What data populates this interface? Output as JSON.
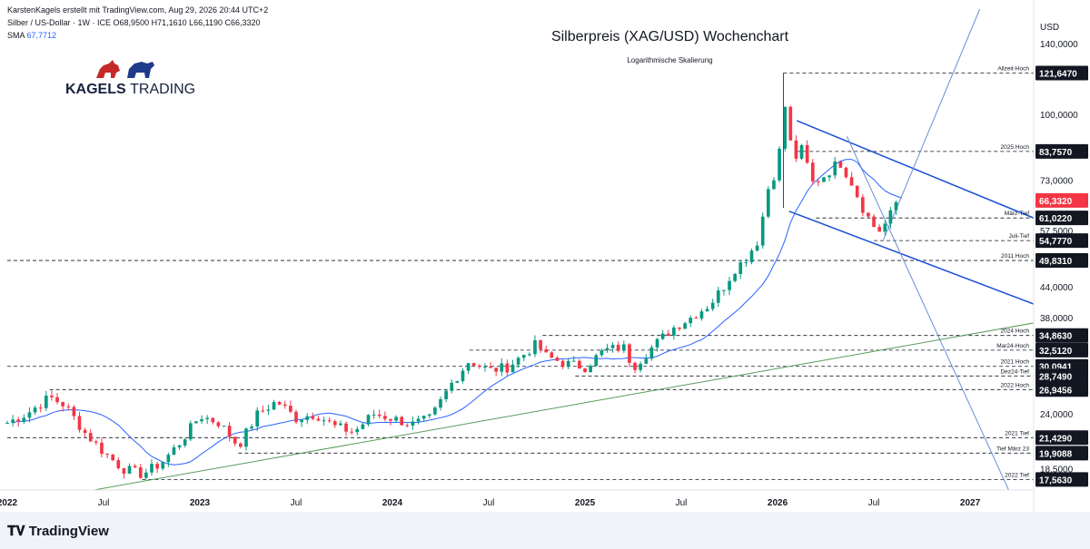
{
  "header": {
    "line1": "KarstenKagels erstellt mit TradingView.com, Aug 29, 2026 20:44 UTC+2",
    "symbol": "Silber / US-Dollar · 1W · ICE",
    "ohlc": "O68,9500 H71,1610 L66,1190 C66,3320",
    "sma_label": "SMA",
    "sma_value": "67,7712"
  },
  "logo": {
    "brand_bold": "KAGELS",
    "brand_light": "TRADING"
  },
  "footer": {
    "brand": "TradingView"
  },
  "colors": {
    "up": "#089981",
    "down": "#f23645",
    "sma": "#2962ff",
    "channel": "#1c4fd6",
    "support": "#5b9b5b",
    "current": "#f23645"
  },
  "chart_data": {
    "type": "candlestick",
    "title": "Silberpreis (XAG/USD) Wochenchart",
    "subtitle": "Logarithmische Skalierung",
    "currency": "USD",
    "scale": "log",
    "x_start": 2022.0,
    "x_end": 2027.33,
    "ylim": [
      16.7,
      165
    ],
    "x_ticks": [
      {
        "label": "2022",
        "x": 2022.0
      },
      {
        "label": "Jul",
        "x": 2022.5
      },
      {
        "label": "2023",
        "x": 2023.0
      },
      {
        "label": "Jul",
        "x": 2023.5
      },
      {
        "label": "2024",
        "x": 2024.0
      },
      {
        "label": "Jul",
        "x": 2024.5
      },
      {
        "label": "2025",
        "x": 2025.0
      },
      {
        "label": "Jul",
        "x": 2025.5
      },
      {
        "label": "2026",
        "x": 2026.0
      },
      {
        "label": "Jul",
        "x": 2026.5
      },
      {
        "label": "2027",
        "x": 2027.0
      }
    ],
    "y_ticks": [
      "140,0000",
      "100,0000",
      "73,0000",
      "57,5000",
      "44,0000",
      "38,0000",
      "24,0000",
      "18,5000"
    ],
    "y_tick_values": [
      140,
      100,
      73,
      57.5,
      44,
      38,
      24,
      18.5
    ],
    "levels": [
      {
        "value": 121.647,
        "tag": "121,6470",
        "label": "Allzeit-Hoch",
        "from": 2026.03
      },
      {
        "value": 83.757,
        "tag": "83,7570",
        "label": "2025 Hoch",
        "from": 2026.1
      },
      {
        "value": 61.022,
        "tag": "61,0220",
        "label": "März-Tief",
        "from": 2026.2
      },
      {
        "value": 54.777,
        "tag": "54,7770",
        "label": "Juli-Tief",
        "from": 2026.5
      },
      {
        "value": 49.831,
        "tag": "49,8310",
        "label": "2011 Hoch",
        "from": 2022.0
      },
      {
        "value": 34.863,
        "tag": "34,8630",
        "label": "2024 Hoch",
        "from": 2024.78
      },
      {
        "value": 32.512,
        "tag": "32,5120",
        "label": "Mar24-Hoch",
        "from": 2024.4
      },
      {
        "value": 30.0941,
        "tag": "30,0941",
        "label": "2021 Hoch",
        "from": 2022.0
      },
      {
        "value": 28.749,
        "tag": "28,7490",
        "label": "Dez24-Tief",
        "from": 2024.95
      },
      {
        "value": 26.9456,
        "tag": "26,9456",
        "label": "2022 Hoch",
        "from": 2022.22
      },
      {
        "value": 21.429,
        "tag": "21,4290",
        "label": "2021 Tief",
        "from": 2022.0
      },
      {
        "value": 19.9088,
        "tag": "19,9088",
        "label": "Tief März 23",
        "from": 2023.2
      },
      {
        "value": 17.563,
        "tag": "17,5630",
        "label": "2022 Tief",
        "from": 2022.7
      }
    ],
    "current_price": {
      "value": 66.332,
      "tag": "66,3320"
    },
    "extra_tag": {
      "value": 83.757,
      "tag": "83,7570"
    },
    "anchors": [
      [
        2022.0,
        23.0
      ],
      [
        2022.1,
        24.0
      ],
      [
        2022.22,
        26.0
      ],
      [
        2022.3,
        25.0
      ],
      [
        2022.4,
        22.0
      ],
      [
        2022.5,
        20.0
      ],
      [
        2022.6,
        18.5
      ],
      [
        2022.7,
        18.0
      ],
      [
        2022.8,
        19.0
      ],
      [
        2022.9,
        21.0
      ],
      [
        2023.0,
        23.8
      ],
      [
        2023.1,
        23.0
      ],
      [
        2023.2,
        20.6
      ],
      [
        2023.3,
        24.0
      ],
      [
        2023.4,
        25.5
      ],
      [
        2023.5,
        23.5
      ],
      [
        2023.6,
        24.0
      ],
      [
        2023.7,
        22.6
      ],
      [
        2023.8,
        22.0
      ],
      [
        2023.9,
        24.0
      ],
      [
        2024.0,
        23.5
      ],
      [
        2024.1,
        22.8
      ],
      [
        2024.2,
        23.5
      ],
      [
        2024.3,
        27.5
      ],
      [
        2024.4,
        31.0
      ],
      [
        2024.5,
        29.5
      ],
      [
        2024.6,
        30.0
      ],
      [
        2024.75,
        33.5
      ],
      [
        2024.8,
        31.5
      ],
      [
        2024.9,
        30.5
      ],
      [
        2025.0,
        30.0
      ],
      [
        2025.1,
        32.5
      ],
      [
        2025.2,
        33.0
      ],
      [
        2025.25,
        30.0
      ],
      [
        2025.35,
        33.0
      ],
      [
        2025.45,
        36.0
      ],
      [
        2025.55,
        38.0
      ],
      [
        2025.65,
        40.5
      ],
      [
        2025.72,
        44.0
      ],
      [
        2025.78,
        48.0
      ],
      [
        2025.83,
        50.0
      ],
      [
        2025.9,
        55.0
      ],
      [
        2025.95,
        70.0
      ],
      [
        2026.0,
        78.0
      ],
      [
        2026.04,
        105.0
      ],
      [
        2026.08,
        80.0
      ],
      [
        2026.13,
        85.0
      ],
      [
        2026.18,
        72.0
      ],
      [
        2026.25,
        75.0
      ],
      [
        2026.32,
        80.0
      ],
      [
        2026.38,
        73.0
      ],
      [
        2026.45,
        63.0
      ],
      [
        2026.52,
        57.0
      ],
      [
        2026.57,
        60.0
      ],
      [
        2026.62,
        66.3
      ]
    ]
  }
}
